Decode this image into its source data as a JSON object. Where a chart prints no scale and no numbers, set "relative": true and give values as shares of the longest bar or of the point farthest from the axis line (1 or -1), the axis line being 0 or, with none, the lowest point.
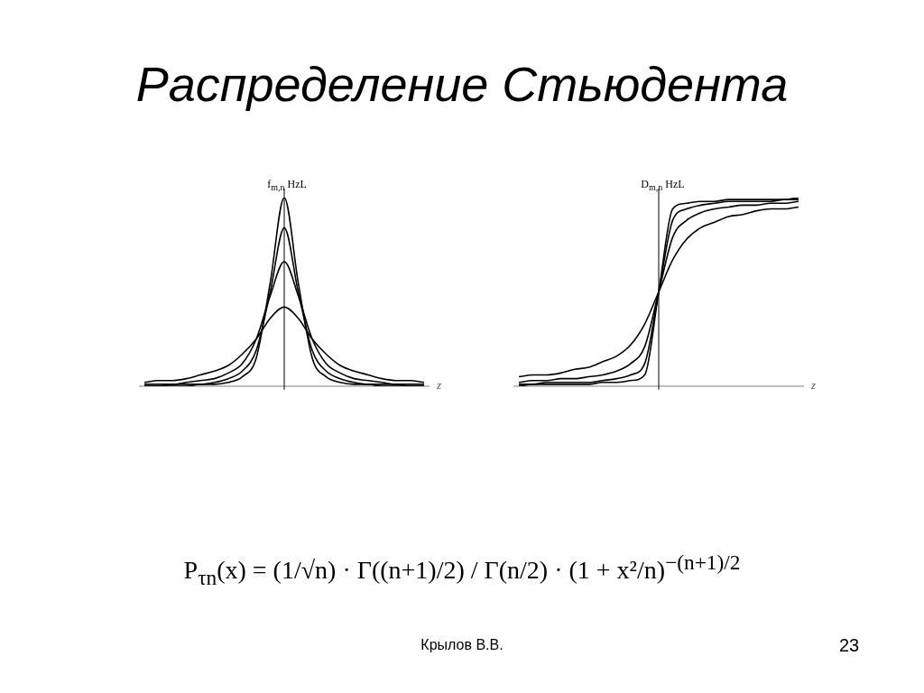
{
  "chart_data": [
    {
      "type": "line",
      "title": "Распределение Стьюдента",
      "xlabel": "z",
      "ylabel": "f$_{m,n}$ HzL",
      "relative": true,
      "categories": [
        null,
        null,
        null,
        null,
        null,
        null,
        null,
        null,
        null,
        null,
        null,
        null,
        null,
        null,
        null,
        null,
        null,
        null,
        null,
        null,
        null
      ],
      "series": [
        {
          "color": "#000000",
          "values": [
            0,
            0,
            0,
            0,
            0.01,
            0.01,
            0.02,
            0.05,
            0.15,
            0.55,
            1,
            0.55,
            0.15,
            0.05,
            0.02,
            0.01,
            0.01,
            0,
            0,
            0,
            0
          ]
        },
        {
          "color": "#000000",
          "values": [
            0,
            0,
            0.01,
            0.01,
            0.01,
            0.02,
            0.04,
            0.08,
            0.19,
            0.5,
            0.84,
            0.5,
            0.19,
            0.08,
            0.04,
            0.02,
            0.01,
            0.01,
            0.01,
            0,
            0
          ]
        },
        {
          "color": "#000000",
          "values": [
            0.01,
            0.01,
            0.01,
            0.02,
            0.03,
            0.04,
            0.07,
            0.12,
            0.25,
            0.48,
            0.66,
            0.48,
            0.25,
            0.12,
            0.07,
            0.04,
            0.03,
            0.02,
            0.01,
            0.01,
            0.01
          ]
        },
        {
          "color": "#000000",
          "values": [
            0.02,
            0.03,
            0.03,
            0.04,
            0.06,
            0.08,
            0.11,
            0.17,
            0.25,
            0.36,
            0.42,
            0.36,
            0.25,
            0.17,
            0.11,
            0.08,
            0.06,
            0.04,
            0.03,
            0.03,
            0.02
          ]
        }
      ],
      "annotations": [
        "P$_{τn}$(x) = (1/√n) · Γ((n+1)/2) / Γ(n/2) · (1 + x²/n)$^{−(n+1)/2}$",
        "Крылов В.В.",
        "23"
      ]
    },
    {
      "type": "line",
      "xlabel": "z",
      "ylabel": "D$_{m,n}$ HzL",
      "relative": true,
      "categories": [
        null,
        null,
        null,
        null,
        null,
        null,
        null,
        null,
        null,
        null,
        null,
        null,
        null,
        null,
        null,
        null,
        null,
        null,
        null,
        null,
        null
      ],
      "series": [
        {
          "color": "#000000",
          "values": [
            0.05,
            0.06,
            0.06,
            0.07,
            0.09,
            0.1,
            0.13,
            0.16,
            0.22,
            0.33,
            0.5,
            0.67,
            0.78,
            0.84,
            0.87,
            0.9,
            0.91,
            0.93,
            0.94,
            0.94,
            0.95
          ]
        },
        {
          "color": "#000000",
          "values": [
            0.02,
            0.03,
            0.03,
            0.04,
            0.04,
            0.05,
            0.06,
            0.08,
            0.12,
            0.21,
            0.5,
            0.79,
            0.88,
            0.92,
            0.94,
            0.95,
            0.96,
            0.96,
            0.97,
            0.97,
            0.98
          ]
        },
        {
          "color": "#000000",
          "values": [
            0.01,
            0.01,
            0.02,
            0.02,
            0.02,
            0.02,
            0.03,
            0.04,
            0.06,
            0.12,
            0.5,
            0.88,
            0.94,
            0.96,
            0.97,
            0.98,
            0.98,
            0.98,
            0.98,
            0.99,
            0.99
          ]
        },
        {
          "color": "#000000",
          "values": [
            0,
            0.01,
            0.01,
            0.01,
            0.01,
            0.01,
            0.02,
            0.02,
            0.03,
            0.06,
            0.5,
            0.94,
            0.97,
            0.98,
            0.98,
            0.99,
            0.99,
            0.99,
            0.99,
            0.99,
            1
          ]
        }
      ]
    }
  ]
}
